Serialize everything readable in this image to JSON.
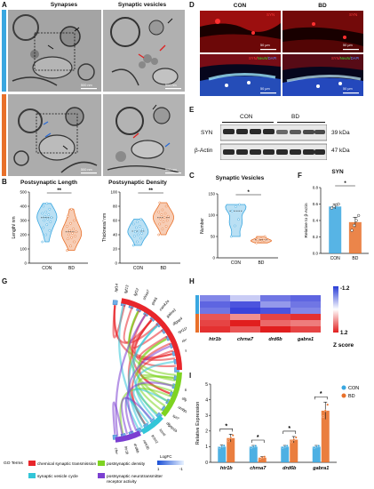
{
  "panels": {
    "A": {
      "label": "A",
      "col_titles": [
        "Synapses",
        "Synaptic vesicles"
      ],
      "scalebars": [
        "500 nm",
        "500 nm",
        "500 nm",
        "500 nm"
      ],
      "group_colors": {
        "CON": "#3aa7e0",
        "BD": "#e8702a"
      }
    },
    "B": {
      "label": "B"
    },
    "C": {
      "label": "C"
    },
    "D": {
      "label": "D",
      "groups": [
        "CON",
        "BD"
      ],
      "marker": "SYN",
      "merge_label_1": "SYN/",
      "merge_label_2": "NeuN/",
      "merge_label_3": "DAPI",
      "scalebars": [
        "50 μm",
        "50 μm",
        "50 μm",
        "50 μm"
      ]
    },
    "E": {
      "label": "E",
      "groups": [
        "CON",
        "BD"
      ],
      "rows": [
        {
          "name": "SYN",
          "size": "39 kDa"
        },
        {
          "name": "β-Actin",
          "size": "47 kDa"
        }
      ]
    },
    "F": {
      "label": "F"
    },
    "G": {
      "label": "G",
      "genes_left": [
        "fgf14",
        "fgf13",
        "fgf12",
        "shisa7",
        "grik5",
        "camk2a",
        "gabra1",
        "dlgap4",
        "syt11b",
        "rims3",
        "shank1",
        "rims4",
        "syt2",
        "syt2a",
        "gabra4",
        "dlgap1a",
        "rimbp2",
        "syt7",
        "dlgap1b",
        "fcnst",
        "lrrtm1",
        "ntrk3b",
        "drd6b",
        "htr1b",
        "chrna7"
      ],
      "legend_title": "GO Terms",
      "go_terms": [
        {
          "name": "chemical synaptic transmission",
          "color": "#e8262b"
        },
        {
          "name": "postsynaptic density",
          "color": "#7ed321"
        },
        {
          "name": "synaptic vesicle cycle",
          "color": "#33c6d8"
        },
        {
          "name": "postsynaptic neurotransmitter receptor activity",
          "color": "#7b3fd1"
        }
      ],
      "logfc_label": "LogFC",
      "logfc_ticks": [
        "1",
        "-1"
      ]
    },
    "H": {
      "label": "H",
      "genes": [
        "htr1b",
        "chrna7",
        "drd6b",
        "gabra1"
      ],
      "scale_max": "1.2",
      "scale_min": "-1.2",
      "scale_title": "Z score",
      "heat": [
        [
          -0.7,
          -0.3,
          -0.8,
          -0.9
        ],
        [
          -0.9,
          -1.0,
          -0.6,
          -0.8
        ],
        [
          -0.8,
          -1.1,
          -1.0,
          -0.7
        ],
        [
          0.9,
          0.6,
          1.0,
          1.1
        ],
        [
          1.0,
          1.2,
          0.8,
          0.7
        ],
        [
          1.1,
          0.9,
          1.2,
          1.0
        ]
      ]
    },
    "I": {
      "label": "I"
    }
  },
  "chart_data": [
    {
      "id": "B-left",
      "type": "violin",
      "title": "Postsynaptic Length",
      "xlabel": "",
      "ylabel": "Length/ nm",
      "categories": [
        "CON",
        "BD"
      ],
      "ylim": [
        0,
        500
      ],
      "yticks": [
        0,
        100,
        200,
        300,
        400,
        500
      ],
      "series": [
        {
          "name": "CON",
          "values": [
            150,
            200,
            230,
            250,
            270,
            290,
            300,
            310,
            320,
            330,
            340,
            350,
            360,
            380,
            400,
            420
          ]
        },
        {
          "name": "BD",
          "values": [
            90,
            120,
            150,
            170,
            180,
            190,
            200,
            210,
            220,
            230,
            240,
            260,
            280,
            300,
            330,
            380
          ]
        }
      ],
      "significance": "**"
    },
    {
      "id": "B-right",
      "type": "violin",
      "title": "Postsynaptic Density",
      "xlabel": "",
      "ylabel": "Thickness/ nm",
      "categories": [
        "CON",
        "BD"
      ],
      "ylim": [
        0,
        100
      ],
      "yticks": [
        0,
        20,
        40,
        60,
        80,
        100
      ],
      "series": [
        {
          "name": "CON",
          "values": [
            25,
            30,
            35,
            38,
            40,
            42,
            44,
            45,
            47,
            50,
            52,
            55,
            58,
            62
          ]
        },
        {
          "name": "BD",
          "values": [
            40,
            48,
            52,
            55,
            58,
            60,
            62,
            64,
            66,
            68,
            70,
            72,
            75,
            80,
            85
          ]
        }
      ],
      "significance": "**"
    },
    {
      "id": "C",
      "type": "violin",
      "title": "Synaptic Vesicles",
      "xlabel": "",
      "ylabel": "Number",
      "categories": [
        "CON",
        "BD"
      ],
      "ylim": [
        0,
        150
      ],
      "yticks": [
        0,
        50,
        100,
        150
      ],
      "series": [
        {
          "name": "CON",
          "values": [
            50,
            75,
            90,
            110,
            120,
            125
          ]
        },
        {
          "name": "BD",
          "values": [
            35,
            38,
            40,
            42,
            45,
            50
          ]
        }
      ],
      "significance": "*"
    },
    {
      "id": "F",
      "type": "bar",
      "title": "SYN",
      "xlabel": "",
      "ylabel": "Relative to β-Actin",
      "categories": [
        "CON",
        "BD"
      ],
      "ylim": [
        0,
        0.8
      ],
      "yticks": [
        0.0,
        0.2,
        0.4,
        0.6,
        0.8
      ],
      "values": [
        0.57,
        0.38
      ],
      "errors": [
        0.03,
        0.06
      ],
      "points": [
        [
          0.55,
          0.57,
          0.59,
          0.6
        ],
        [
          0.28,
          0.34,
          0.4,
          0.46
        ]
      ],
      "colors": [
        "#3aa7e0",
        "#e8702a"
      ],
      "significance": "*"
    },
    {
      "id": "I",
      "type": "bar",
      "title": "",
      "xlabel": "",
      "ylabel": "Relative Expression",
      "categories": [
        "htr1b",
        "chrna7",
        "drd6b",
        "gabra1"
      ],
      "ylim": [
        0,
        5
      ],
      "yticks": [
        0,
        1,
        2,
        3,
        4,
        5
      ],
      "series": [
        {
          "name": "CON",
          "color": "#3aa7e0",
          "values": [
            1.0,
            1.0,
            1.0,
            1.0
          ],
          "errors": [
            0.1,
            0.08,
            0.08,
            0.08
          ]
        },
        {
          "name": "BD",
          "color": "#e8702a",
          "values": [
            1.55,
            0.3,
            1.45,
            3.3
          ],
          "errors": [
            0.25,
            0.08,
            0.2,
            0.55
          ]
        }
      ],
      "significance": [
        "*",
        "*",
        "*",
        "*"
      ]
    }
  ]
}
